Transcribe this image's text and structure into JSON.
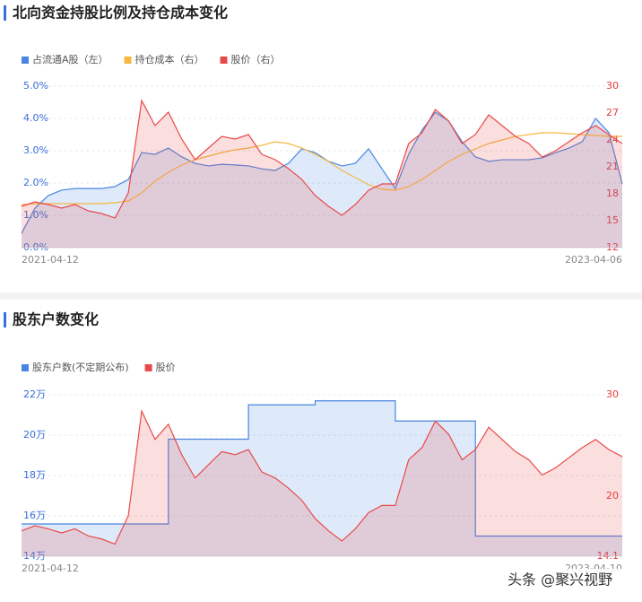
{
  "chart_data": [
    {
      "type": "line",
      "title": "北向资金持股比例及持仓成本变化",
      "categories": [
        "2021-04-12",
        null,
        null,
        null,
        null,
        null,
        null,
        null,
        null,
        null,
        null,
        null,
        null,
        null,
        null,
        null,
        null,
        null,
        null,
        null,
        null,
        null,
        null,
        null,
        null,
        null,
        null,
        null,
        null,
        null,
        null,
        null,
        null,
        null,
        null,
        null,
        null,
        null,
        null,
        null,
        null,
        null,
        null,
        null,
        null,
        "2023-04-06"
      ],
      "ylim": [
        0,
        5
      ],
      "yticks": [
        {
          "value": 0,
          "label": "0.0%"
        },
        {
          "value": 1,
          "label": "1.0%"
        },
        {
          "value": 2,
          "label": "2.0%"
        },
        {
          "value": 3,
          "label": "3.0%"
        },
        {
          "value": 4,
          "label": "4.0%"
        },
        {
          "value": 5,
          "label": "5.0%"
        }
      ],
      "y2lim": [
        12,
        30
      ],
      "y2ticks": [
        12,
        15,
        18,
        21,
        24,
        27,
        30
      ],
      "grid": true,
      "series": [
        {
          "name": "占流通A股（左）",
          "color": "#4a86e0",
          "area": true,
          "values": [
            0.44,
            1.22,
            1.61,
            1.78,
            1.83,
            1.83,
            1.83,
            1.89,
            2.11,
            2.94,
            2.89,
            3.08,
            2.81,
            2.61,
            2.53,
            2.58,
            2.56,
            2.53,
            2.44,
            2.39,
            2.61,
            3.06,
            2.94,
            2.67,
            2.53,
            2.61,
            3.06,
            2.44,
            1.83,
            2.89,
            3.64,
            4.19,
            3.92,
            3.28,
            2.81,
            2.67,
            2.72,
            2.72,
            2.72,
            2.78,
            2.94,
            3.08,
            3.28,
            4.0,
            3.56,
            1.97
          ]
        },
        {
          "name": "持仓成本（右）",
          "color": "#f5b942",
          "axis": "y2",
          "values": [
            16.8,
            16.9,
            16.9,
            16.9,
            16.9,
            16.9,
            16.9,
            17.0,
            17.2,
            18.1,
            19.4,
            20.4,
            21.2,
            21.8,
            22.2,
            22.6,
            22.9,
            23.1,
            23.4,
            23.8,
            23.6,
            23.1,
            22.4,
            21.6,
            20.6,
            19.8,
            19.0,
            18.5,
            18.4,
            18.8,
            19.6,
            20.6,
            21.6,
            22.4,
            23.0,
            23.6,
            24.0,
            24.4,
            24.6,
            24.8,
            24.8,
            24.7,
            24.6,
            24.5,
            24.4,
            24.4
          ]
        },
        {
          "name": "股价（右）",
          "color": "#e84a4a",
          "axis": "y2",
          "area": true,
          "values": [
            16.6,
            17.1,
            16.8,
            16.4,
            16.8,
            16.1,
            15.8,
            15.3,
            18.1,
            28.4,
            25.6,
            27.1,
            24.1,
            21.8,
            23.1,
            24.4,
            24.1,
            24.6,
            22.4,
            21.8,
            20.8,
            19.6,
            17.8,
            16.6,
            15.6,
            16.8,
            18.4,
            19.1,
            19.1,
            23.6,
            24.8,
            27.4,
            26.1,
            23.6,
            24.6,
            26.8,
            25.6,
            24.4,
            23.6,
            22.1,
            22.8,
            23.8,
            24.8,
            25.6,
            24.6,
            23.6
          ]
        }
      ]
    },
    {
      "type": "line",
      "title": "股东户数变化",
      "categories": [
        "2021-04-12",
        null,
        null,
        null,
        null,
        null,
        null,
        null,
        null,
        null,
        null,
        null,
        null,
        null,
        null,
        null,
        null,
        null,
        null,
        null,
        null,
        null,
        null,
        null,
        null,
        null,
        null,
        null,
        null,
        null,
        null,
        null,
        null,
        null,
        null,
        null,
        null,
        null,
        null,
        null,
        null,
        null,
        null,
        null,
        null,
        "2023-04-10"
      ],
      "ylim": [
        140000,
        220000
      ],
      "yticks": [
        {
          "value": 140000,
          "label": "14万"
        },
        {
          "value": 160000,
          "label": "16万"
        },
        {
          "value": 180000,
          "label": "18万"
        },
        {
          "value": 200000,
          "label": "20万"
        },
        {
          "value": 220000,
          "label": "22万"
        }
      ],
      "y2lim": [
        14.1,
        30
      ],
      "y2ticks": [
        14.1,
        20,
        30
      ],
      "grid": true,
      "series": [
        {
          "name": "股东户数(不定期公布)",
          "color": "#4a86e0",
          "area": true,
          "step": true,
          "values": [
            156000,
            156000,
            156000,
            156000,
            156000,
            156000,
            156000,
            156000,
            156000,
            156000,
            156000,
            198000,
            198000,
            198000,
            198000,
            198000,
            198000,
            215000,
            215000,
            215000,
            215000,
            215000,
            217000,
            217000,
            217000,
            217000,
            217000,
            217000,
            207000,
            207000,
            207000,
            207000,
            207000,
            207000,
            150000,
            150000,
            150000,
            150000,
            150000,
            150000,
            150000,
            150000,
            150000,
            150000,
            150000,
            150000
          ]
        },
        {
          "name": "股价",
          "color": "#e84a4a",
          "axis": "y2",
          "area": true,
          "values": [
            16.6,
            17.1,
            16.8,
            16.4,
            16.8,
            16.1,
            15.8,
            15.3,
            18.1,
            28.4,
            25.6,
            27.1,
            24.1,
            21.8,
            23.1,
            24.4,
            24.1,
            24.6,
            22.4,
            21.8,
            20.8,
            19.6,
            17.8,
            16.6,
            15.6,
            16.8,
            18.4,
            19.1,
            19.1,
            23.6,
            24.8,
            27.4,
            26.1,
            23.6,
            24.6,
            26.8,
            25.6,
            24.4,
            23.6,
            22.1,
            22.8,
            23.8,
            24.8,
            25.6,
            24.6,
            23.9
          ]
        }
      ]
    }
  ],
  "watermark": "头条 @聚兴视野"
}
